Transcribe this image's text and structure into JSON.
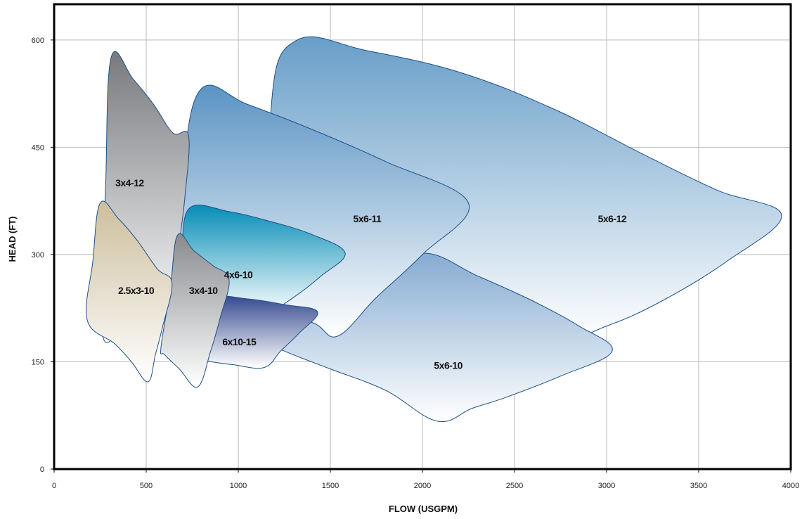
{
  "chart_data": {
    "type": "area",
    "title": "",
    "xlabel": "FLOW (USGPM)",
    "ylabel": "HEAD (FT)",
    "xlim": [
      0,
      4000
    ],
    "ylim": [
      0,
      650
    ],
    "x_ticks": [
      0,
      500,
      1000,
      1500,
      2000,
      2500,
      3000,
      3500,
      4000
    ],
    "y_ticks": [
      0,
      150,
      300,
      450,
      600
    ],
    "grid": true,
    "series": [
      {
        "name": "5x6-12",
        "color_top": "#6a9fc9",
        "color_bottom": "#ffffff",
        "label_at": [
          3030,
          350
        ],
        "outline": [
          [
            1320,
            600
          ],
          [
            1700,
            585
          ],
          [
            2200,
            555
          ],
          [
            2700,
            505
          ],
          [
            3200,
            440
          ],
          [
            3600,
            390
          ],
          [
            3950,
            355
          ],
          [
            3650,
            290
          ],
          [
            3300,
            235
          ],
          [
            3000,
            200
          ],
          [
            2700,
            180
          ],
          [
            2000,
            200
          ],
          [
            1600,
            215
          ],
          [
            1200,
            230
          ],
          [
            1180,
            510
          ],
          [
            1320,
            600
          ]
        ]
      },
      {
        "name": "5x6-10",
        "color_top": "#86abd2",
        "color_bottom": "#ffffff",
        "label_at": [
          2140,
          145
        ],
        "outline": [
          [
            2000,
            302
          ],
          [
            2300,
            270
          ],
          [
            2600,
            235
          ],
          [
            2850,
            200
          ],
          [
            3030,
            165
          ],
          [
            2750,
            130
          ],
          [
            2450,
            100
          ],
          [
            2270,
            85
          ],
          [
            2080,
            67
          ],
          [
            1800,
            110
          ],
          [
            1500,
            140
          ],
          [
            1250,
            165
          ],
          [
            1000,
            195
          ],
          [
            1380,
            230
          ],
          [
            1700,
            265
          ],
          [
            2000,
            302
          ]
        ]
      },
      {
        "name": "5x6-11",
        "color_top": "#5d95c4",
        "color_bottom": "#ffffff",
        "label_at": [
          1700,
          350
        ],
        "outline": [
          [
            800,
            532
          ],
          [
            1050,
            510
          ],
          [
            1400,
            475
          ],
          [
            1800,
            430
          ],
          [
            2250,
            372
          ],
          [
            2000,
            300
          ],
          [
            1750,
            240
          ],
          [
            1540,
            186
          ],
          [
            1400,
            205
          ],
          [
            1100,
            225
          ],
          [
            800,
            240
          ],
          [
            660,
            250
          ],
          [
            700,
            420
          ],
          [
            800,
            532
          ]
        ]
      },
      {
        "name": "3x4-12",
        "color_top": "#7a7c80",
        "color_bottom": "#ffffff",
        "label_at": [
          410,
          400
        ],
        "outline": [
          [
            310,
            576
          ],
          [
            430,
            545
          ],
          [
            540,
            510
          ],
          [
            645,
            470
          ],
          [
            730,
            466
          ],
          [
            710,
            380
          ],
          [
            670,
            300
          ],
          [
            630,
            240
          ],
          [
            500,
            220
          ],
          [
            380,
            200
          ],
          [
            260,
            192
          ],
          [
            280,
            400
          ],
          [
            310,
            576
          ]
        ]
      },
      {
        "name": "4x6-10",
        "color_top": "#0a8fb8",
        "color_bottom": "#ffffff",
        "label_at": [
          1000,
          272
        ],
        "outline": [
          [
            740,
            366
          ],
          [
            950,
            360
          ],
          [
            1150,
            348
          ],
          [
            1400,
            328
          ],
          [
            1580,
            302
          ],
          [
            1450,
            270
          ],
          [
            1300,
            240
          ],
          [
            1150,
            218
          ],
          [
            980,
            215
          ],
          [
            800,
            225
          ],
          [
            650,
            250
          ],
          [
            690,
            310
          ],
          [
            740,
            366
          ]
        ]
      },
      {
        "name": "6x10-15",
        "color_top": "#394e92",
        "color_bottom": "#ffffff",
        "label_at": [
          1005,
          178
        ],
        "outline": [
          [
            820,
            240
          ],
          [
            1050,
            238
          ],
          [
            1250,
            230
          ],
          [
            1430,
            220
          ],
          [
            1330,
            190
          ],
          [
            1230,
            165
          ],
          [
            1140,
            142
          ],
          [
            970,
            146
          ],
          [
            800,
            152
          ],
          [
            700,
            155
          ],
          [
            760,
            200
          ],
          [
            820,
            240
          ]
        ]
      },
      {
        "name": "3x4-10",
        "color_top": "#8a8c90",
        "color_bottom": "#ffffff",
        "label_at": [
          810,
          250
        ],
        "outline": [
          [
            670,
            327
          ],
          [
            760,
            305
          ],
          [
            860,
            285
          ],
          [
            950,
            265
          ],
          [
            900,
            210
          ],
          [
            850,
            165
          ],
          [
            780,
            115
          ],
          [
            680,
            140
          ],
          [
            600,
            160
          ],
          [
            580,
            170
          ],
          [
            630,
            250
          ],
          [
            670,
            327
          ]
        ]
      },
      {
        "name": "2.5x3-10",
        "color_top": "#cdbf9e",
        "color_bottom": "#ffffff",
        "label_at": [
          445,
          250
        ],
        "outline": [
          [
            250,
            372
          ],
          [
            350,
            350
          ],
          [
            450,
            320
          ],
          [
            560,
            280
          ],
          [
            640,
            260
          ],
          [
            590,
            200
          ],
          [
            550,
            160
          ],
          [
            510,
            122
          ],
          [
            420,
            150
          ],
          [
            330,
            175
          ],
          [
            180,
            208
          ],
          [
            210,
            290
          ],
          [
            250,
            372
          ]
        ]
      }
    ]
  }
}
